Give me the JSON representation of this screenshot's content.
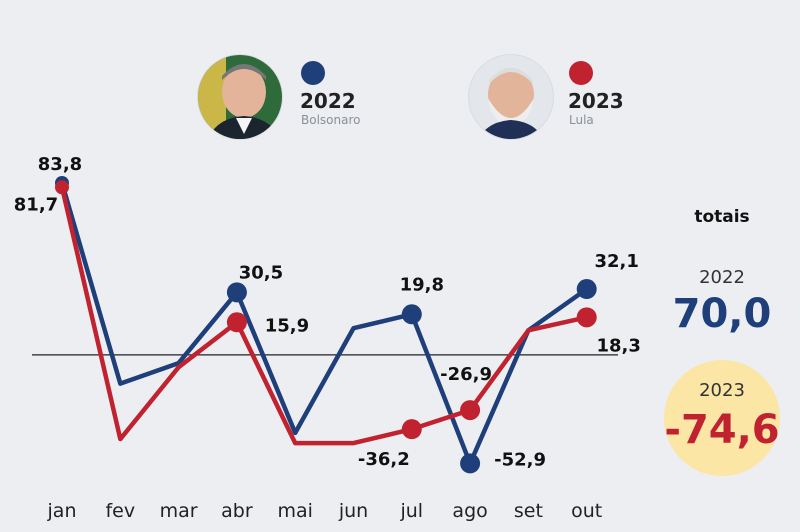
{
  "legend": [
    {
      "year": "2022",
      "name": "Bolsonaro",
      "color": "#1f3f7a",
      "photo": "bolsonaro-portrait"
    },
    {
      "year": "2023",
      "name": "Lula",
      "color": "#c0232f",
      "photo": "lula-portrait"
    }
  ],
  "totals": {
    "title": "totais",
    "items": [
      {
        "year": "2022",
        "value": "70,0",
        "color": "#1f3f7a"
      },
      {
        "year": "2023",
        "value": "-74,6",
        "color": "#c0232f",
        "highlight": "#fbe6a6"
      }
    ]
  },
  "chart_data": {
    "type": "line",
    "categories": [
      "jan",
      "fev",
      "mar",
      "abr",
      "mai",
      "jun",
      "jul",
      "ago",
      "set",
      "out"
    ],
    "series": [
      {
        "name": "2022",
        "color": "#1f3f7a",
        "values": [
          83.8,
          -14,
          -4,
          30.5,
          -38,
          13,
          19.8,
          -52.9,
          12,
          32.1
        ]
      },
      {
        "name": "2023",
        "color": "#c0232f",
        "values": [
          81.7,
          -41,
          -6,
          15.9,
          -43,
          -43,
          -36.2,
          -26.9,
          12,
          18.3
        ]
      }
    ],
    "point_labels": [
      {
        "series": 0,
        "index": 0,
        "text": "83,8"
      },
      {
        "series": 1,
        "index": 0,
        "text": "81,7"
      },
      {
        "series": 0,
        "index": 3,
        "text": "30,5"
      },
      {
        "series": 1,
        "index": 3,
        "text": "15,9"
      },
      {
        "series": 0,
        "index": 6,
        "text": "19,8"
      },
      {
        "series": 1,
        "index": 6,
        "text": "-36,2"
      },
      {
        "series": 0,
        "index": 7,
        "text": "-52,9"
      },
      {
        "series": 1,
        "index": 7,
        "text": "-26,9"
      },
      {
        "series": 0,
        "index": 9,
        "text": "32,1"
      },
      {
        "series": 1,
        "index": 9,
        "text": "18,3"
      }
    ],
    "zero_line": true,
    "ylim": [
      -60,
      95
    ],
    "grid": false
  }
}
